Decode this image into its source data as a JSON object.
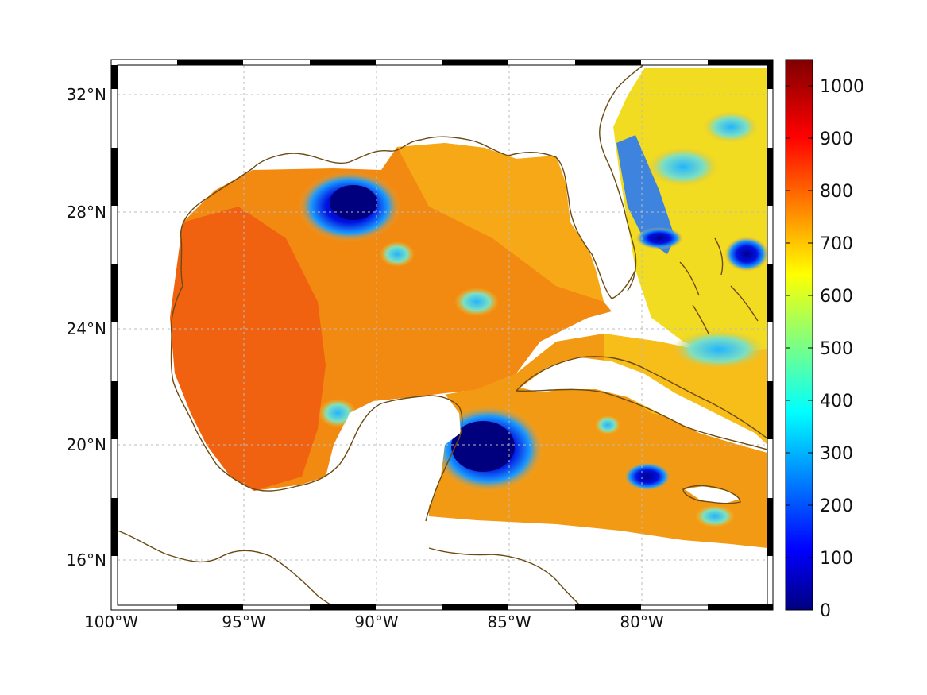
{
  "map": {
    "lon_ticks": [
      "100°W",
      "95°W",
      "90°W",
      "85°W",
      "80°W"
    ],
    "lat_ticks": [
      "32°N",
      "28°N",
      "24°N",
      "20°N",
      "16°N"
    ],
    "colorbar": {
      "ticks": [
        "1000",
        "900",
        "800",
        "700",
        "600",
        "500",
        "400",
        "300",
        "200",
        "100",
        "0"
      ],
      "range": [
        0,
        1050
      ],
      "colormap": "jet"
    },
    "colors": {
      "coastline": "#6b4a14",
      "grid": "#bbbbbb",
      "frame_dark": "#000000",
      "frame_light": "#ffffff"
    }
  }
}
